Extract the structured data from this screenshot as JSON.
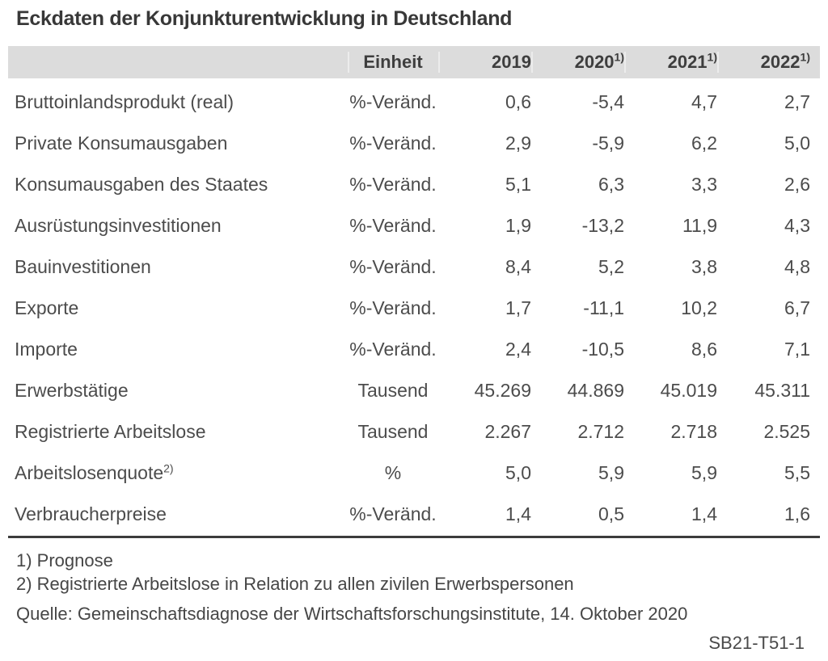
{
  "title": "Eckdaten der Konjunkturentwicklung in Deutschland",
  "table": {
    "unit_header": "Einheit",
    "year_headers": [
      {
        "label": "2019",
        "sup": ""
      },
      {
        "label": "2020",
        "sup": "1)"
      },
      {
        "label": "2021",
        "sup": "1)"
      },
      {
        "label": "2022",
        "sup": "1)"
      }
    ],
    "rows": [
      {
        "label": "Bruttoinlandsprodukt (real)",
        "sup": "",
        "unit": "%-Veränd.",
        "values": [
          "0,6",
          "-5,4",
          "4,7",
          "2,7"
        ]
      },
      {
        "label": "Private Konsumausgaben",
        "sup": "",
        "unit": "%-Veränd.",
        "values": [
          "2,9",
          "-5,9",
          "6,2",
          "5,0"
        ]
      },
      {
        "label": "Konsumausgaben des Staates",
        "sup": "",
        "unit": "%-Veränd.",
        "values": [
          "5,1",
          "6,3",
          "3,3",
          "2,6"
        ]
      },
      {
        "label": "Ausrüstungsinvestitionen",
        "sup": "",
        "unit": "%-Veränd.",
        "values": [
          "1,9",
          "-13,2",
          "11,9",
          "4,3"
        ]
      },
      {
        "label": "Bauinvestitionen",
        "sup": "",
        "unit": "%-Veränd.",
        "values": [
          "8,4",
          "5,2",
          "3,8",
          "4,8"
        ]
      },
      {
        "label": "Exporte",
        "sup": "",
        "unit": "%-Veränd.",
        "values": [
          "1,7",
          "-11,1",
          "10,2",
          "6,7"
        ]
      },
      {
        "label": "Importe",
        "sup": "",
        "unit": "%-Veränd.",
        "values": [
          "2,4",
          "-10,5",
          "8,6",
          "7,1"
        ]
      },
      {
        "label": "Erwerbstätige",
        "sup": "",
        "unit": "Tausend",
        "values": [
          "45.269",
          "44.869",
          "45.019",
          "45.311"
        ]
      },
      {
        "label": "Registrierte Arbeitslose",
        "sup": "",
        "unit": "Tausend",
        "values": [
          "2.267",
          "2.712",
          "2.718",
          "2.525"
        ]
      },
      {
        "label": "Arbeitslosenquote",
        "sup": "2)",
        "unit": "%",
        "values": [
          "5,0",
          "5,9",
          "5,9",
          "5,5"
        ]
      },
      {
        "label": "Verbraucherpreise",
        "sup": "",
        "unit": "%-Veränd.",
        "values": [
          "1,4",
          "0,5",
          "1,4",
          "1,6"
        ]
      }
    ]
  },
  "footnotes": [
    "1) Prognose",
    "2) Registrierte Arbeitslose in Relation zu allen zivilen Erwerbspersonen"
  ],
  "source": "Quelle: Gemeinschaftsdiagnose der Wirtschaftsforschungsinstitute, 14. Oktober 2020",
  "figure_code": "SB21-T51-1",
  "colors": {
    "header_bg": "#dcdcdc",
    "title": "#383838",
    "text": "#4c4c4c",
    "rule": "#3c3c3c"
  },
  "chart_data": {
    "type": "table",
    "title": "Eckdaten der Konjunkturentwicklung in Deutschland",
    "columns": [
      "",
      "Einheit",
      "2019",
      "2020 1)",
      "2021 1)",
      "2022 1)"
    ],
    "rows": [
      [
        "Bruttoinlandsprodukt (real)",
        "%-Veränd.",
        "0,6",
        "-5,4",
        "4,7",
        "2,7"
      ],
      [
        "Private Konsumausgaben",
        "%-Veränd.",
        "2,9",
        "-5,9",
        "6,2",
        "5,0"
      ],
      [
        "Konsumausgaben des Staates",
        "%-Veränd.",
        "5,1",
        "6,3",
        "3,3",
        "2,6"
      ],
      [
        "Ausrüstungsinvestitionen",
        "%-Veränd.",
        "1,9",
        "-13,2",
        "11,9",
        "4,3"
      ],
      [
        "Bauinvestitionen",
        "%-Veränd.",
        "8,4",
        "5,2",
        "3,8",
        "4,8"
      ],
      [
        "Exporte",
        "%-Veränd.",
        "1,7",
        "-11,1",
        "10,2",
        "6,7"
      ],
      [
        "Importe",
        "%-Veränd.",
        "2,4",
        "-10,5",
        "8,6",
        "7,1"
      ],
      [
        "Erwerbstätige",
        "Tausend",
        "45.269",
        "44.869",
        "45.019",
        "45.311"
      ],
      [
        "Registrierte Arbeitslose",
        "Tausend",
        "2.267",
        "2.712",
        "2.718",
        "2.525"
      ],
      [
        "Arbeitslosenquote 2)",
        "%",
        "5,0",
        "5,9",
        "5,9",
        "5,5"
      ],
      [
        "Verbraucherpreise",
        "%-Veränd.",
        "1,4",
        "0,5",
        "1,4",
        "1,6"
      ]
    ],
    "footnotes": [
      "1) Prognose",
      "2) Registrierte Arbeitslose in Relation zu allen zivilen Erwerbspersonen"
    ],
    "source": "Quelle: Gemeinschaftsdiagnose der Wirtschaftsforschungsinstitute, 14. Oktober 2020",
    "figure_code": "SB21-T51-1"
  }
}
